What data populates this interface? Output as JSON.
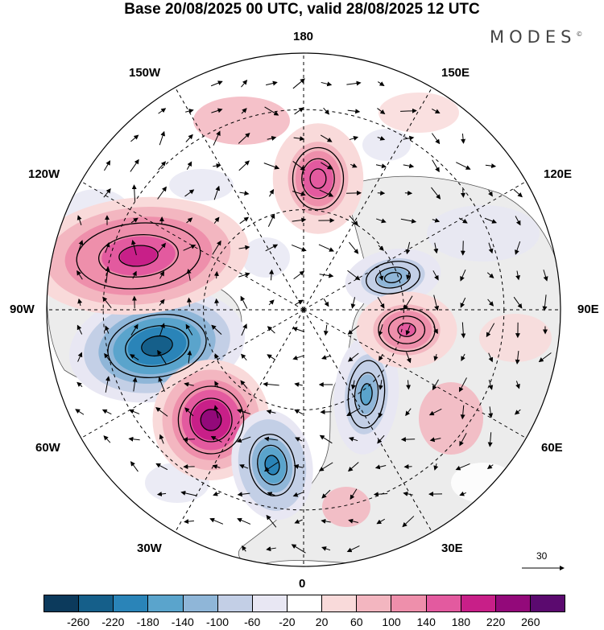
{
  "title": "Base 20/08/2025 00 UTC, valid 28/08/2025 12 UTC",
  "brand": "MODES",
  "brand_mark": "©",
  "longitude_labels": {
    "top": "180",
    "bottom": "0",
    "left": "90W",
    "right": "90E",
    "upper_left_1": "150W",
    "upper_left_2": "120W",
    "upper_right_1": "150E",
    "upper_right_2": "120E",
    "lower_left_1": "60W",
    "lower_left_2": "30W",
    "lower_right_1": "60E",
    "lower_right_2": "30E"
  },
  "reference_vector": "30",
  "colorbar": {
    "colors": [
      "#0c3a5c",
      "#155f8a",
      "#2a84b8",
      "#5aa4cc",
      "#8fb6d8",
      "#c3cfe6",
      "#e8e7f3",
      "#ffffff",
      "#f9dada",
      "#f3b6c0",
      "#ee8fab",
      "#e35a9f",
      "#c81f88",
      "#93097a",
      "#5b0a6f"
    ],
    "tick_labels": [
      "-260",
      "-220",
      "-180",
      "-140",
      "-100",
      "-60",
      "-20",
      "20",
      "60",
      "100",
      "140",
      "180",
      "220",
      "260"
    ]
  },
  "anomaly_centers": [
    {
      "region": "north-america",
      "sign": "negative",
      "value": -250
    },
    {
      "region": "north-atlantic",
      "sign": "positive",
      "value": 240
    },
    {
      "region": "pacific-north",
      "sign": "positive",
      "value": 200
    },
    {
      "region": "alaska-pacific",
      "sign": "positive",
      "value": 170
    },
    {
      "region": "eastern-atlantic",
      "sign": "negative",
      "value": -190
    },
    {
      "region": "scandinavia",
      "sign": "negative",
      "value": -150
    },
    {
      "region": "east-siberia",
      "sign": "negative",
      "value": -140
    },
    {
      "region": "siberia",
      "sign": "positive",
      "value": 150
    }
  ]
}
